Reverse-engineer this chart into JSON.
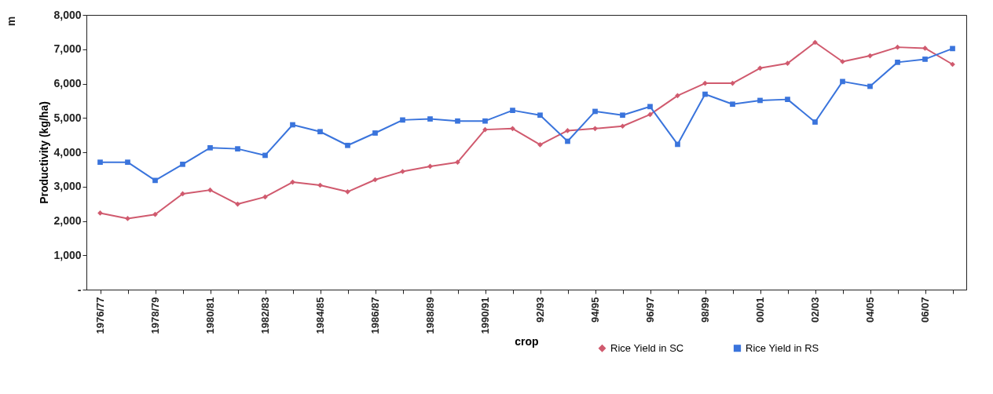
{
  "chart_data": {
    "type": "line",
    "xlabel": "crop",
    "ylabel": "Productivity (kg/ha)",
    "annotations": [
      "m"
    ],
    "categories": [
      "1976/77",
      null,
      "1978/79",
      null,
      "1980/81",
      null,
      "1982/83",
      null,
      "1984/85",
      null,
      "1986/87",
      null,
      "1988/89",
      null,
      "1990/91",
      null,
      "92/93",
      null,
      "94/95",
      null,
      "96/97",
      null,
      "98/99",
      null,
      "00/01",
      null,
      "02/03",
      null,
      "04/05",
      null,
      "06/07",
      null
    ],
    "series": [
      {
        "name": "Rice Yield in SC",
        "color": "#d05a6e",
        "marker": "diamond",
        "values": [
          2230,
          2070,
          2190,
          2790,
          2900,
          2490,
          2700,
          3130,
          3040,
          2850,
          3200,
          3440,
          3590,
          3710,
          4660,
          4690,
          4220,
          4630,
          4690,
          4760,
          5100,
          5650,
          6010,
          6010,
          6450,
          6590,
          7200,
          6640,
          6810,
          7060,
          7030,
          6560
        ]
      },
      {
        "name": "Rice Yield in RS",
        "color": "#3a74dc",
        "marker": "square",
        "values": [
          3710,
          3710,
          3180,
          3650,
          4130,
          4100,
          3910,
          4800,
          4600,
          4200,
          4560,
          4940,
          4970,
          4910,
          4910,
          5220,
          5080,
          4320,
          5190,
          5080,
          5330,
          4230,
          5690,
          5400,
          5510,
          5540,
          4880,
          6060,
          5920,
          6620,
          6710,
          7020
        ]
      }
    ],
    "ylim": [
      0,
      8000
    ],
    "yticks": [
      {
        "value": 0,
        "label": "-"
      },
      {
        "value": 1000,
        "label": "1,000"
      },
      {
        "value": 2000,
        "label": "2,000"
      },
      {
        "value": 3000,
        "label": "3,000"
      },
      {
        "value": 4000,
        "label": "4,000"
      },
      {
        "value": 5000,
        "label": "5,000"
      },
      {
        "value": 6000,
        "label": "6,000"
      },
      {
        "value": 7000,
        "label": "7,000"
      },
      {
        "value": 8000,
        "label": "8,000"
      }
    ],
    "grid": false,
    "legend": "bottom right",
    "line_style": "solid"
  }
}
